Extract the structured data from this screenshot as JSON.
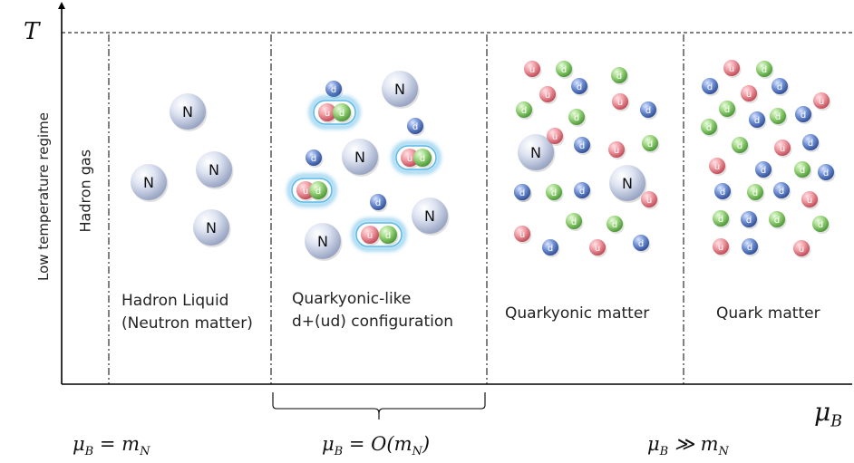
{
  "axes": {
    "y_symbol": "T",
    "y_label": "Low temperature regime",
    "x_symbol": "μ",
    "x_sub": "B"
  },
  "regions": [
    {
      "id": "hadron-gas",
      "lines": [
        "Hadron gas"
      ]
    },
    {
      "id": "hadron-liquid",
      "lines": [
        "Hadron Liquid",
        "(Neutron matter)"
      ]
    },
    {
      "id": "quarkyonic-like",
      "lines": [
        "Quarkyonic-like",
        "d+(ud) configuration"
      ]
    },
    {
      "id": "quarkyonic",
      "lines": [
        "Quarkyonic matter"
      ]
    },
    {
      "id": "quark",
      "lines": [
        "Quark matter"
      ]
    }
  ],
  "bottom_labels": [
    {
      "mu": "μ",
      "sub": "B",
      "rel": " = m",
      "rel_sub": "N",
      "suffix": ""
    },
    {
      "mu": "μ",
      "sub": "B",
      "rel": " = O(m",
      "rel_sub": "N",
      "suffix": ")"
    },
    {
      "mu": "μ",
      "sub": "B",
      "rel": " ≫ m",
      "rel_sub": "N",
      "suffix": ""
    }
  ],
  "particles": {
    "neutron_label": "N",
    "up_label": "u",
    "down_label": "d"
  },
  "colors": {
    "neutron": "#c9d2e6",
    "up": "#e78a92",
    "down": "#5f7fc2",
    "green": "#8ccf6e",
    "glow": "#4fb3e6"
  }
}
